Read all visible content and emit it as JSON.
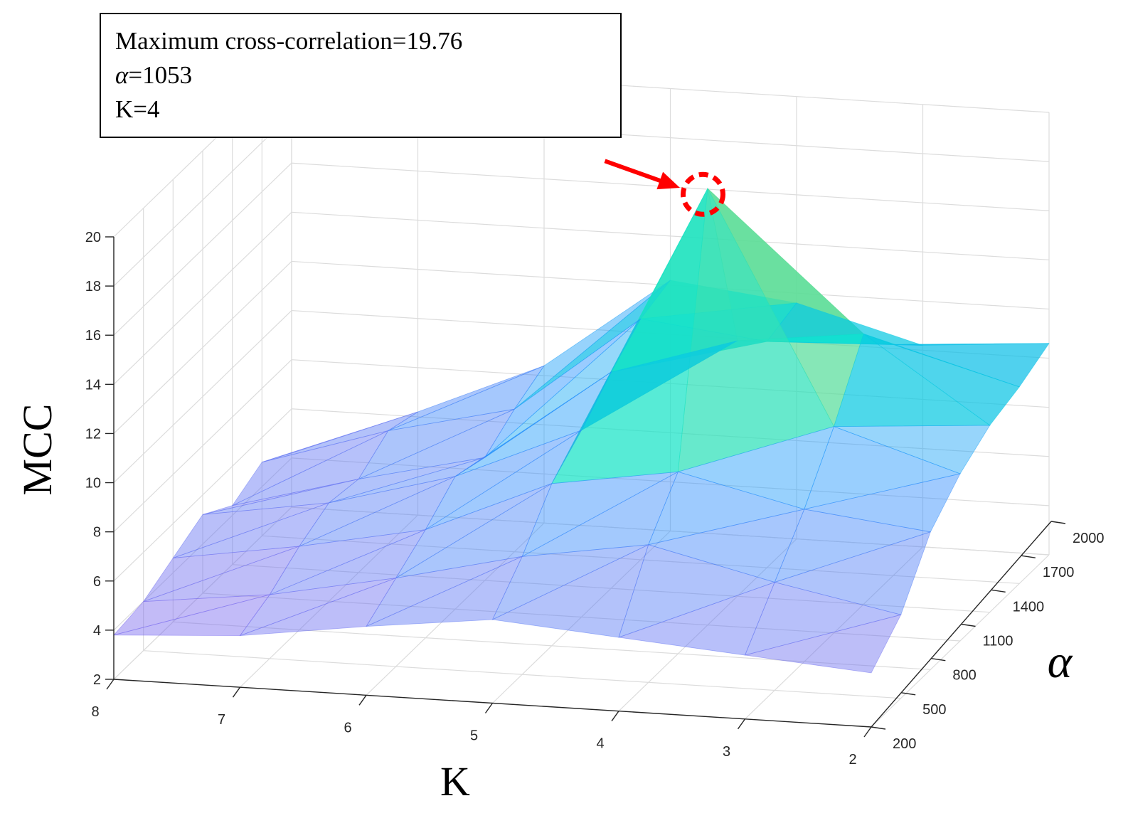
{
  "chart_data": {
    "type": "surface3d",
    "title": "",
    "xlabel": "K",
    "ylabel": "α",
    "zlabel": "MCC",
    "x_ticks": [
      8,
      7,
      6,
      5,
      4,
      3,
      2
    ],
    "y_ticks": [
      200,
      500,
      800,
      1100,
      1400,
      1700,
      2000
    ],
    "z_ticks": [
      2,
      4,
      6,
      8,
      10,
      12,
      14,
      16,
      18,
      20
    ],
    "xlim": [
      2,
      8
    ],
    "ylim": [
      200,
      2000
    ],
    "zlim": [
      2,
      20
    ],
    "K_values": [
      8,
      7,
      6,
      5,
      4,
      3,
      2
    ],
    "alpha_values": [
      200,
      500,
      800,
      1100,
      1400,
      1700,
      2000
    ],
    "mcc_grid": [
      [
        3.8,
        4.0,
        4.6,
        5.2,
        4.4,
        5.0,
        4.2
      ],
      [
        4.1,
        4.6,
        5.4,
        6.0,
        5.8,
        6.6,
        6.2
      ],
      [
        4.8,
        5.6,
        6.4,
        7.4,
        7.0,
        7.8,
        8.4
      ],
      [
        5.4,
        6.8,
        8.6,
        9.6,
        10.8,
        11.8,
        12.2
      ],
      [
        5.0,
        7.6,
        9.4,
        19.76,
        12.4,
        11.2,
        11.6
      ],
      [
        4.6,
        6.4,
        8.2,
        10.4,
        13.0,
        11.4,
        10.2
      ],
      [
        4.2,
        5.4,
        7.6,
        8.8,
        9.6,
        10.0,
        10.6
      ]
    ],
    "peak": {
      "K": 4,
      "alpha": 1053,
      "mcc": 19.76
    },
    "annotation": {
      "line1": "Maximum cross-correlation=19.76",
      "line2_symbol": "α",
      "line2_value": "=1053",
      "line3": "K=4"
    },
    "colors": {
      "surface_low": "#7b68ee",
      "surface_mid": "#1e90ff",
      "surface_cyan": "#00e5d4",
      "surface_green": "#6fdc8c",
      "surface_yellow": "#ffd54a",
      "marker": "#ff0000"
    }
  }
}
